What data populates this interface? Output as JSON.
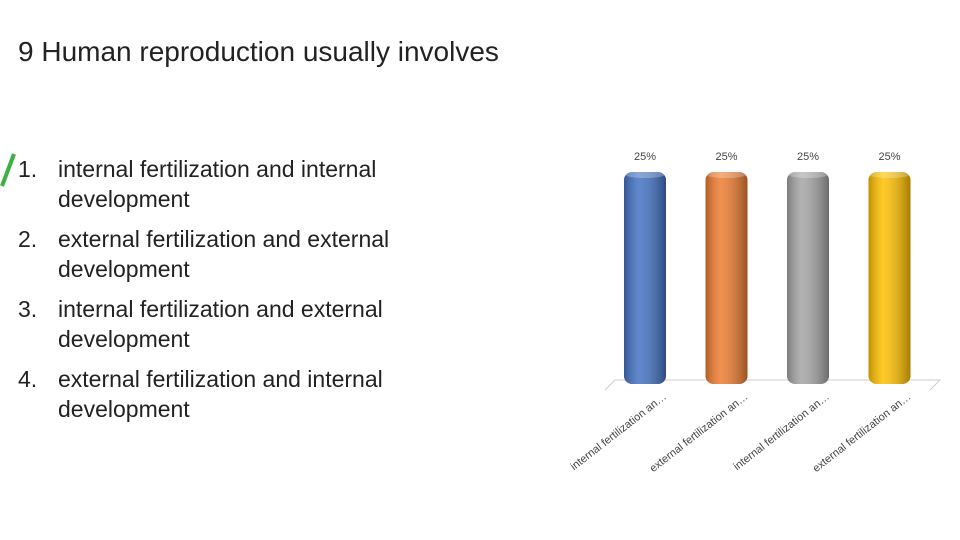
{
  "title": "9 Human reproduction usually involves",
  "options": [
    {
      "number": "1.",
      "text": "internal fertilization and internal development"
    },
    {
      "number": "2.",
      "text": "external fertilization and external development"
    },
    {
      "number": "3.",
      "text": "internal fertilization and external development"
    },
    {
      "number": "4.",
      "text": "external fertilization and internal development"
    }
  ],
  "chart_data": {
    "type": "bar",
    "categories": [
      "internal fertilization an…",
      "external fertilization an…",
      "internal fertilization an…",
      "external fertilization an…"
    ],
    "values": [
      25,
      25,
      25,
      25
    ],
    "value_labels": [
      "25%",
      "25%",
      "25%",
      "25%"
    ],
    "colors": [
      "#4472c4",
      "#ed7d31",
      "#a5a5a5",
      "#ffc000"
    ]
  }
}
